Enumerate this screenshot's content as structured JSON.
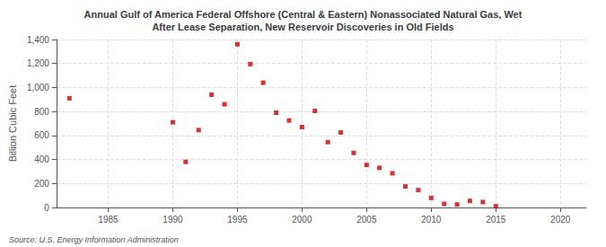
{
  "chart_data": {
    "type": "scatter",
    "title": "Annual Gulf of America Federal Offshore (Central & Eastern) Nonassociated Natural Gas, Wet\nAfter Lease Separation, New Reservoir Discoveries in Old Fields",
    "ylabel": "Billion Cubic Feet",
    "annotations": [
      "Source: U.S. Energy Information Administration"
    ],
    "x": [
      1982,
      1990,
      1991,
      1992,
      1993,
      1994,
      1995,
      1996,
      1997,
      1998,
      1999,
      2000,
      2001,
      2002,
      2003,
      2004,
      2005,
      2006,
      2007,
      2008,
      2009,
      2010,
      2011,
      2012,
      2013,
      2014,
      2015
    ],
    "values": [
      910,
      710,
      380,
      645,
      940,
      860,
      1360,
      1195,
      1040,
      790,
      725,
      670,
      805,
      545,
      625,
      455,
      355,
      330,
      285,
      175,
      145,
      80,
      30,
      25,
      55,
      45,
      10
    ],
    "color": "#cc0000",
    "marker": "square",
    "xlim": [
      1981,
      2022
    ],
    "xticks": [
      1985,
      1990,
      1995,
      2000,
      2005,
      2010,
      2015,
      2020
    ],
    "ylim": [
      0,
      1400
    ],
    "yticks": [
      0,
      200,
      400,
      600,
      800,
      {
        "value": 1000,
        "label": "1,000"
      },
      {
        "value": 1200,
        "label": "1,200"
      },
      {
        "value": 1400,
        "label": "1,400"
      }
    ],
    "grid": true
  }
}
